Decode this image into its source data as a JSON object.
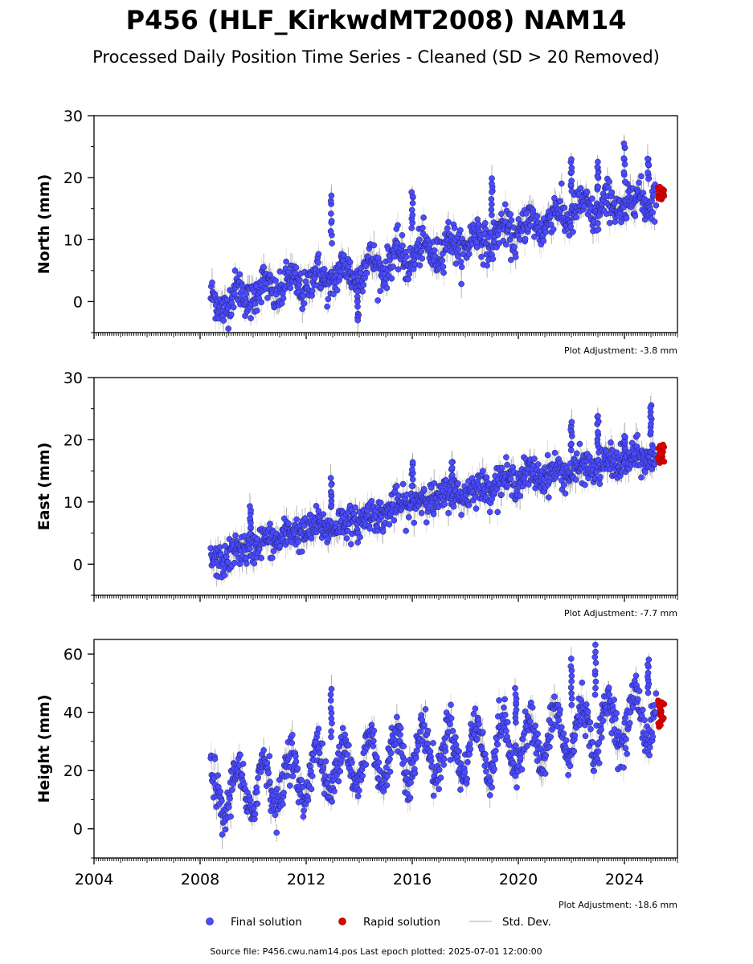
{
  "header": {
    "title": "P456 (HLF_KirkwdMT2008) NAM14",
    "subtitle": "Processed Daily Position Time Series - Cleaned (SD > 20 Removed)"
  },
  "legend": {
    "final": "Final solution",
    "rapid": "Rapid solution",
    "std": "Std. Dev."
  },
  "footer": {
    "source": "Source file: P456.cwu.nam14.pos  Last epoch plotted: 2025-07-01 12:00:00"
  },
  "colors": {
    "final": "#4a4aff",
    "final_edge": "#1a1a55",
    "rapid": "#e00000",
    "std": "#c8c8c8",
    "std_dark": "#555555"
  },
  "chart_data": [
    {
      "type": "scatter",
      "ylabel": "North (mm)",
      "adjustment": "Plot Adjustment: -3.8 mm",
      "xlim": [
        2004,
        2026
      ],
      "ylim": [
        -5,
        30
      ],
      "yticks": [
        0,
        10,
        20,
        30
      ],
      "xticks": [
        2004,
        2008,
        2012,
        2016,
        2020,
        2024
      ],
      "xtick_labels_visible": false,
      "trend_points": [
        [
          2008.4,
          -0.5
        ],
        [
          2010,
          1.5
        ],
        [
          2012,
          3.0
        ],
        [
          2014,
          5.0
        ],
        [
          2016,
          7.5
        ],
        [
          2018,
          9.5
        ],
        [
          2020,
          11.5
        ],
        [
          2022,
          14.5
        ],
        [
          2024,
          15.5
        ],
        [
          2025.3,
          17.5
        ]
      ],
      "seasonal_amplitude": 1.5,
      "scatter_spread": 1.5,
      "spikes": [
        [
          2012.95,
          17.5
        ],
        [
          2013.95,
          -3.3
        ],
        [
          2016.0,
          17.8
        ],
        [
          2019.0,
          20.0
        ],
        [
          2022.0,
          23.0
        ],
        [
          2023.0,
          22.5
        ],
        [
          2024.0,
          25.5
        ],
        [
          2024.9,
          23.5
        ]
      ],
      "series": [
        {
          "name": "Final solution",
          "x_range": [
            2008.4,
            2025.2
          ]
        },
        {
          "name": "Rapid solution",
          "x": [
            2025.25,
            2025.5
          ],
          "y": [
            16.5,
            18.5
          ]
        }
      ]
    },
    {
      "type": "scatter",
      "ylabel": "East (mm)",
      "adjustment": "Plot Adjustment: -7.7 mm",
      "xlim": [
        2004,
        2026
      ],
      "ylim": [
        -5,
        30
      ],
      "yticks": [
        0,
        10,
        20,
        30
      ],
      "xticks": [
        2004,
        2008,
        2012,
        2016,
        2020,
        2024
      ],
      "xtick_labels_visible": false,
      "trend_points": [
        [
          2008.4,
          0.0
        ],
        [
          2010,
          3.0
        ],
        [
          2012,
          5.5
        ],
        [
          2014,
          7.0
        ],
        [
          2016,
          10.0
        ],
        [
          2018,
          11.5
        ],
        [
          2020,
          14.0
        ],
        [
          2022,
          15.0
        ],
        [
          2024,
          16.5
        ],
        [
          2025.3,
          17.5
        ]
      ],
      "seasonal_amplitude": 0.6,
      "scatter_spread": 1.3,
      "spikes": [
        [
          2009.9,
          9.0
        ],
        [
          2012.95,
          13.5
        ],
        [
          2016.0,
          16.0
        ],
        [
          2017.5,
          16.5
        ],
        [
          2022.0,
          23.0
        ],
        [
          2023.0,
          23.8
        ],
        [
          2024.0,
          20.5
        ],
        [
          2025.0,
          25.5
        ]
      ],
      "series": [
        {
          "name": "Final solution",
          "x_range": [
            2008.4,
            2025.2
          ]
        },
        {
          "name": "Rapid solution",
          "x": [
            2025.25,
            2025.5
          ],
          "y": [
            16.3,
            19.2
          ]
        }
      ]
    },
    {
      "type": "scatter",
      "ylabel": "Height (mm)",
      "adjustment": "Plot Adjustment: -18.6 mm",
      "xlim": [
        2004,
        2026
      ],
      "ylim": [
        -10,
        65
      ],
      "yticks": [
        0,
        20,
        40,
        60
      ],
      "xticks": [
        2004,
        2008,
        2012,
        2016,
        2020,
        2024
      ],
      "xtick_labels_visible": true,
      "trend_points": [
        [
          2008.4,
          12.0
        ],
        [
          2010,
          14.0
        ],
        [
          2012,
          19.0
        ],
        [
          2014,
          23.0
        ],
        [
          2016,
          26.0
        ],
        [
          2018,
          27.0
        ],
        [
          2020,
          29.0
        ],
        [
          2022,
          33.0
        ],
        [
          2024,
          37.0
        ],
        [
          2025.3,
          40.0
        ]
      ],
      "seasonal_amplitude": 9.0,
      "scatter_spread": 3.5,
      "spikes": [
        [
          2012.95,
          48.0
        ],
        [
          2019.9,
          48.0
        ],
        [
          2022.0,
          58.0
        ],
        [
          2022.9,
          63.0
        ],
        [
          2024.9,
          58.0
        ]
      ],
      "series": [
        {
          "name": "Final solution",
          "x_range": [
            2008.4,
            2025.2
          ]
        },
        {
          "name": "Rapid solution",
          "x": [
            2025.25,
            2025.5
          ],
          "y": [
            35.0,
            44.0
          ]
        }
      ]
    }
  ]
}
